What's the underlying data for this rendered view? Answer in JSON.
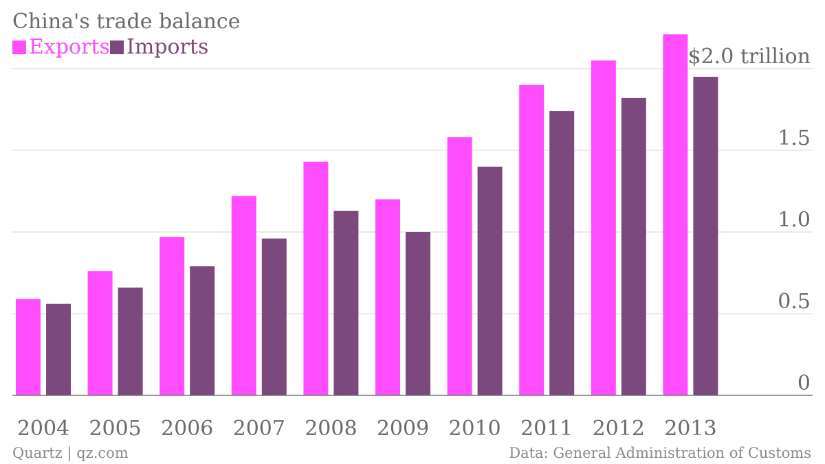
{
  "chart_data": {
    "type": "bar",
    "title": "China's trade balance",
    "categories": [
      "2004",
      "2005",
      "2006",
      "2007",
      "2008",
      "2009",
      "2010",
      "2011",
      "2012",
      "2013"
    ],
    "series": [
      {
        "name": "Exports",
        "color": "#ff4dff",
        "values": [
          0.59,
          0.76,
          0.97,
          1.22,
          1.43,
          1.2,
          1.58,
          1.9,
          2.05,
          2.21
        ]
      },
      {
        "name": "Imports",
        "color": "#7b497d",
        "values": [
          0.56,
          0.66,
          0.79,
          0.96,
          1.13,
          1.0,
          1.4,
          1.74,
          1.82,
          1.95
        ]
      }
    ],
    "ylim": [
      0,
      2.0
    ],
    "yticks": [
      {
        "value": 0,
        "label": "0"
      },
      {
        "value": 0.5,
        "label": "0.5"
      },
      {
        "value": 1.0,
        "label": "1.0"
      },
      {
        "value": 1.5,
        "label": "1.5"
      },
      {
        "value": 2.0,
        "label": "$2.0 trillion"
      }
    ],
    "grid": true,
    "legend_position": "top-left",
    "source_left": "Quartz | qz.com",
    "source_right": "Data: General Administration of Customs"
  }
}
